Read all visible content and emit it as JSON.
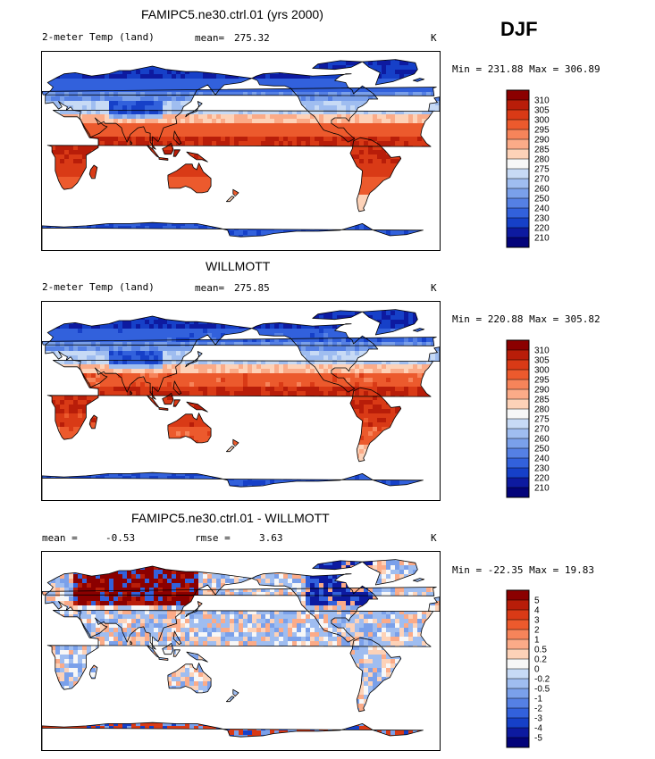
{
  "season": "DJF",
  "panels": [
    {
      "title": "FAMIPC5.ne30.ctrl.01 (yrs 2000)",
      "left_label": "2-meter Temp (land)",
      "stat1_label": "mean=",
      "stat1_value": "275.32",
      "stat2_label": "",
      "stat2_value": "",
      "units": "K",
      "minmax": "Min = 231.88 Max = 306.89"
    },
    {
      "title": "WILLMOTT",
      "left_label": "2-meter Temp (land)",
      "stat1_label": "mean=",
      "stat1_value": "275.85",
      "stat2_label": "",
      "stat2_value": "",
      "units": "K",
      "minmax": "Min = 220.88 Max = 305.82"
    },
    {
      "title": "FAMIPC5.ne30.ctrl.01 - WILLMOTT",
      "left_label": "mean =",
      "stat1_label": "",
      "stat1_value": "-0.53",
      "stat2_label": "rmse =",
      "stat2_value": "3.63",
      "units": "K",
      "minmax": "Min = -22.35 Max = 19.83"
    }
  ],
  "chart_data": [
    {
      "type": "heatmap",
      "title": "FAMIPC5.ne30.ctrl.01 (yrs 2000)",
      "variable": "2-meter Temp (land)",
      "units": "K",
      "mean": 275.32,
      "min": 231.88,
      "max": 306.89,
      "levels": [
        "310",
        "305",
        "300",
        "295",
        "290",
        "285",
        "280",
        "275",
        "270",
        "260",
        "250",
        "240",
        "230",
        "220",
        "210"
      ],
      "colors": [
        "#8b0000",
        "#b81d09",
        "#d93a16",
        "#ec5a2d",
        "#f6845a",
        "#fbab88",
        "#fdd2b8",
        "#f7f7f7",
        "#c7daf5",
        "#9fbdf0",
        "#7aa0ea",
        "#5580e4",
        "#3261dc",
        "#1640c8",
        "#0d1aa0",
        "#03037a"
      ]
    },
    {
      "type": "heatmap",
      "title": "WILLMOTT",
      "variable": "2-meter Temp (land)",
      "units": "K",
      "mean": 275.85,
      "min": 220.88,
      "max": 305.82,
      "levels": [
        "310",
        "305",
        "300",
        "295",
        "290",
        "285",
        "280",
        "275",
        "270",
        "260",
        "250",
        "240",
        "230",
        "220",
        "210"
      ],
      "colors": [
        "#8b0000",
        "#b81d09",
        "#d93a16",
        "#ec5a2d",
        "#f6845a",
        "#fbab88",
        "#fdd2b8",
        "#f7f7f7",
        "#c7daf5",
        "#9fbdf0",
        "#7aa0ea",
        "#5580e4",
        "#3261dc",
        "#1640c8",
        "#0d1aa0",
        "#03037a"
      ]
    },
    {
      "type": "heatmap",
      "title": "FAMIPC5.ne30.ctrl.01 - WILLMOTT",
      "units": "K",
      "mean": -0.53,
      "rmse": 3.63,
      "min": -22.35,
      "max": 19.83,
      "levels": [
        "5",
        "4",
        "3",
        "2",
        "1",
        "0.5",
        "0.2",
        "0",
        "-0.2",
        "-0.5",
        "-1",
        "-2",
        "-3",
        "-4",
        "-5"
      ],
      "colors": [
        "#8b0000",
        "#b81d09",
        "#d93a16",
        "#ec5a2d",
        "#f6845a",
        "#fbab88",
        "#fdd2b8",
        "#f7f7f7",
        "#c7daf5",
        "#9fbdf0",
        "#7aa0ea",
        "#5580e4",
        "#3261dc",
        "#1640c8",
        "#0d1aa0",
        "#03037a"
      ]
    }
  ]
}
